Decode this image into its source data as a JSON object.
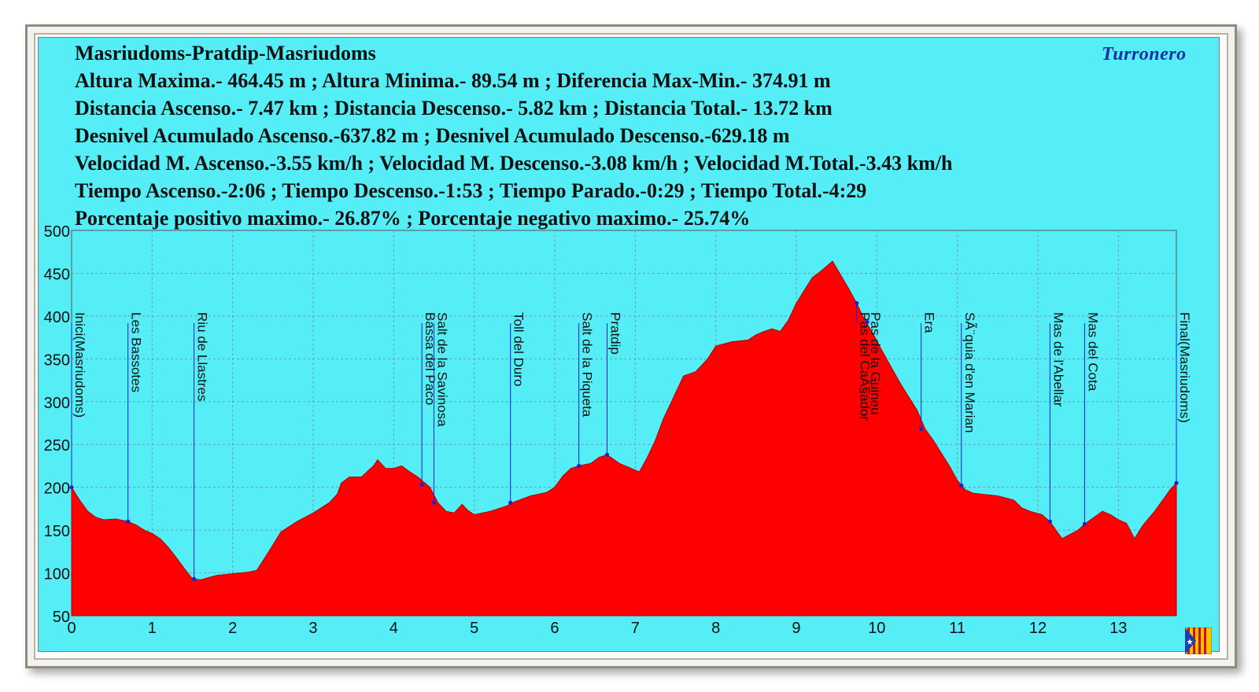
{
  "header": {
    "lines": [
      "Masriudoms-Pratdip-Masriudoms",
      "Altura Maxima.- 464.45 m ; Altura Minima.- 89.54 m ; Diferencia Max-Min.- 374.91 m",
      "Distancia Ascenso.- 7.47 km ; Distancia Descenso.- 5.82 km ; Distancia Total.- 13.72 km",
      "Desnivel Acumulado Ascenso.-637.82 m ; Desnivel Acumulado Descenso.-629.18 m",
      "Velocidad M. Ascenso.-3.55 km/h ; Velocidad M. Descenso.-3.08 km/h ; Velocidad M.Total.-3.43 km/h",
      "Tiempo Ascenso.-2:06 ; Tiempo Descenso.-1:53 ; Tiempo Parado.-0:29 ; Tiempo Total.-4:29",
      "Porcentaje positivo maximo.- 26.87% ; Porcentaje negativo maximo.- 25.74%"
    ],
    "brand": "Turronero"
  },
  "colors": {
    "background": "#55eef7",
    "fill": "#ff0000",
    "waypoint": "#2020d0",
    "grid": "#6f9fa8"
  },
  "chart_data": {
    "type": "area",
    "xlim": [
      0,
      13.72
    ],
    "ylim": [
      50,
      500
    ],
    "x_ticks": [
      0,
      1,
      2,
      3,
      4,
      5,
      6,
      7,
      8,
      9,
      10,
      11,
      12,
      13
    ],
    "y_ticks": [
      50,
      100,
      150,
      200,
      250,
      300,
      350,
      400,
      450,
      500
    ],
    "grid": true,
    "profile": [
      [
        0,
        200
      ],
      [
        0.1,
        185
      ],
      [
        0.2,
        172
      ],
      [
        0.3,
        165
      ],
      [
        0.4,
        162
      ],
      [
        0.55,
        163
      ],
      [
        0.7,
        160
      ],
      [
        0.8,
        156
      ],
      [
        0.9,
        150
      ],
      [
        1.0,
        146
      ],
      [
        1.1,
        140
      ],
      [
        1.2,
        130
      ],
      [
        1.3,
        118
      ],
      [
        1.4,
        105
      ],
      [
        1.5,
        93
      ],
      [
        1.6,
        92
      ],
      [
        1.8,
        97
      ],
      [
        2.0,
        99
      ],
      [
        2.2,
        101
      ],
      [
        2.3,
        103
      ],
      [
        2.45,
        125
      ],
      [
        2.6,
        148
      ],
      [
        2.8,
        160
      ],
      [
        3.0,
        170
      ],
      [
        3.2,
        182
      ],
      [
        3.3,
        192
      ],
      [
        3.35,
        205
      ],
      [
        3.45,
        212
      ],
      [
        3.6,
        212
      ],
      [
        3.75,
        225
      ],
      [
        3.8,
        232
      ],
      [
        3.9,
        222
      ],
      [
        4.0,
        222
      ],
      [
        4.1,
        225
      ],
      [
        4.2,
        218
      ],
      [
        4.3,
        212
      ],
      [
        4.45,
        200
      ],
      [
        4.55,
        182
      ],
      [
        4.65,
        172
      ],
      [
        4.75,
        170
      ],
      [
        4.85,
        180
      ],
      [
        4.92,
        173
      ],
      [
        5.0,
        168
      ],
      [
        5.2,
        172
      ],
      [
        5.4,
        178
      ],
      [
        5.5,
        183
      ],
      [
        5.7,
        190
      ],
      [
        5.9,
        194
      ],
      [
        6.0,
        200
      ],
      [
        6.1,
        213
      ],
      [
        6.2,
        222
      ],
      [
        6.3,
        225
      ],
      [
        6.45,
        228
      ],
      [
        6.55,
        235
      ],
      [
        6.65,
        238
      ],
      [
        6.8,
        228
      ],
      [
        6.95,
        222
      ],
      [
        7.05,
        218
      ],
      [
        7.15,
        235
      ],
      [
        7.25,
        255
      ],
      [
        7.35,
        280
      ],
      [
        7.5,
        310
      ],
      [
        7.6,
        330
      ],
      [
        7.75,
        335
      ],
      [
        7.9,
        350
      ],
      [
        8.0,
        365
      ],
      [
        8.2,
        370
      ],
      [
        8.4,
        372
      ],
      [
        8.5,
        378
      ],
      [
        8.6,
        382
      ],
      [
        8.7,
        385
      ],
      [
        8.8,
        382
      ],
      [
        8.9,
        395
      ],
      [
        9.0,
        415
      ],
      [
        9.1,
        430
      ],
      [
        9.2,
        445
      ],
      [
        9.3,
        452
      ],
      [
        9.45,
        464
      ],
      [
        9.55,
        448
      ],
      [
        9.65,
        432
      ],
      [
        9.75,
        415
      ],
      [
        9.85,
        395
      ],
      [
        9.95,
        380
      ],
      [
        10.05,
        362
      ],
      [
        10.15,
        345
      ],
      [
        10.3,
        320
      ],
      [
        10.5,
        290
      ],
      [
        10.6,
        268
      ],
      [
        10.7,
        255
      ],
      [
        10.8,
        240
      ],
      [
        10.9,
        225
      ],
      [
        11.0,
        208
      ],
      [
        11.1,
        197
      ],
      [
        11.2,
        193
      ],
      [
        11.5,
        190
      ],
      [
        11.7,
        185
      ],
      [
        11.8,
        176
      ],
      [
        11.9,
        172
      ],
      [
        12.05,
        168
      ],
      [
        12.15,
        160
      ],
      [
        12.3,
        140
      ],
      [
        12.4,
        145
      ],
      [
        12.5,
        150
      ],
      [
        12.58,
        157
      ],
      [
        12.7,
        165
      ],
      [
        12.8,
        172
      ],
      [
        12.9,
        168
      ],
      [
        13.0,
        162
      ],
      [
        13.1,
        158
      ],
      [
        13.2,
        140
      ],
      [
        13.3,
        155
      ],
      [
        13.45,
        172
      ],
      [
        13.55,
        185
      ],
      [
        13.65,
        198
      ],
      [
        13.72,
        205
      ]
    ],
    "waypoints": [
      {
        "label": "Inici(Masriudoms)",
        "x": 0.0,
        "y": 200
      },
      {
        "label": "Les Bassotes",
        "x": 0.7,
        "y": 160
      },
      {
        "label": "Riu de Llastres",
        "x": 1.52,
        "y": 93
      },
      {
        "label": "Bassa del Paco",
        "x": 4.35,
        "y": 203
      },
      {
        "label": "Salt de la Savinosa",
        "x": 4.5,
        "y": 182
      },
      {
        "label": "Toll del Duro",
        "x": 5.45,
        "y": 182
      },
      {
        "label": "Salt de la Piqueta",
        "x": 6.3,
        "y": 225
      },
      {
        "label": "Pratdip",
        "x": 6.65,
        "y": 238
      },
      {
        "label": "Pas del CaÃ§ador",
        "x": 9.75,
        "y": 415
      },
      {
        "label": "Pas de la Guineu",
        "x": 9.88,
        "y": 393
      },
      {
        "label": "Era",
        "x": 10.55,
        "y": 268
      },
      {
        "label": "SÃ¨quia d'en Marian",
        "x": 11.05,
        "y": 202
      },
      {
        "label": "Mas de l'Abellar",
        "x": 12.15,
        "y": 160
      },
      {
        "label": "Mas del Cota",
        "x": 12.58,
        "y": 157
      },
      {
        "label": "Final(Masriudoms)",
        "x": 13.72,
        "y": 205
      }
    ]
  }
}
